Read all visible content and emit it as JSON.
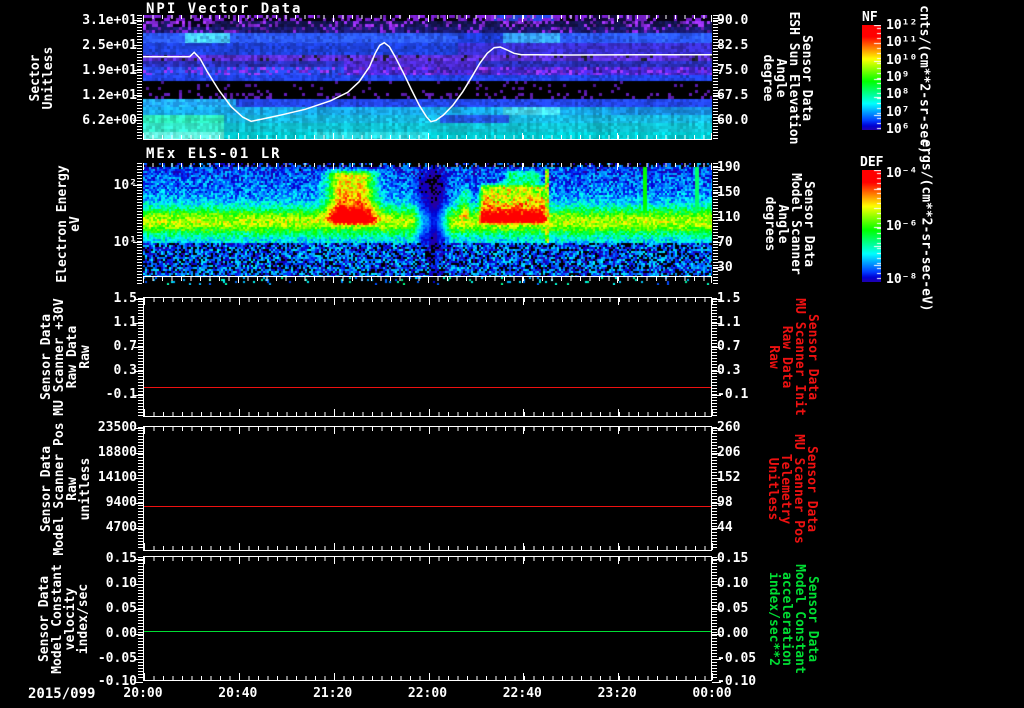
{
  "x_axis": {
    "date": "2015/099",
    "labels": [
      "20:00",
      "20:40",
      "21:20",
      "22:00",
      "22:40",
      "23:20",
      "00:00"
    ]
  },
  "panels": {
    "npi": {
      "title": "NPI Vector Data",
      "left_label_lines": [
        "Sector",
        "Unitless"
      ],
      "left_ticks": [
        "3.1e+01",
        "2.5e+01",
        "1.9e+01",
        "1.2e+01",
        "6.2e+00"
      ],
      "right_ticks": [
        "90.0",
        "82.5",
        "75.0",
        "67.5",
        "60.0"
      ],
      "right_label_lines": [
        "Sensor Data",
        "ESH Sun Elevation",
        "Angle",
        "degree"
      ]
    },
    "els": {
      "title": "MEx ELS-01 LR",
      "left_label_lines": [
        "Electron Energy",
        "eV"
      ],
      "left_ticks": [
        "10²",
        "10¹"
      ],
      "right_ticks": [
        "190",
        "150",
        "110",
        "70",
        "30"
      ],
      "right_label_lines": [
        "Sensor Data",
        "Model Scanner",
        "Angle",
        "degrees"
      ]
    },
    "mu_scanner": {
      "left_label_lines": [
        "Sensor Data",
        "MU Scanner +30V",
        "Raw Data",
        "Raw"
      ],
      "left_ticks": [
        "1.5",
        "1.1",
        "0.7",
        "0.3",
        "-0.1"
      ],
      "right_ticks": [
        "1.5",
        "1.1",
        "0.7",
        "0.3",
        "-0.1"
      ],
      "right_label_lines": [
        "Sensor Data",
        "MU Scanner Init",
        "Raw Data",
        "Raw"
      ],
      "right_label_color": "#ee1111"
    },
    "scanner_pos": {
      "left_label_lines": [
        "Sensor Data",
        "Model Scanner Pos",
        "Raw",
        "unitless"
      ],
      "left_ticks": [
        "23500",
        "18800",
        "14100",
        "9400",
        "4700"
      ],
      "right_ticks": [
        "260",
        "206",
        "152",
        "98",
        "44"
      ],
      "right_label_lines": [
        "Sensor Data",
        "MU Scanner Pos",
        "Telemetry",
        "Unitless"
      ],
      "right_label_color": "#ee1111"
    },
    "model_constant": {
      "left_label_lines": [
        "Sensor Data",
        "Model Constant",
        "velocity",
        "index/sec"
      ],
      "left_ticks": [
        "0.15",
        "0.10",
        "0.05",
        "0.00",
        "-0.05",
        "-0.10"
      ],
      "right_ticks": [
        "0.15",
        "0.10",
        "0.05",
        "0.00",
        "-0.05",
        "-0.10"
      ],
      "right_label_lines": [
        "Sensor Data",
        "Model Constant",
        "acceleration",
        "index/sec**2"
      ],
      "right_label_color": "#00dd33"
    }
  },
  "colorbars": {
    "nf": {
      "title": "NF",
      "ticks": [
        "10¹²",
        "10¹¹",
        "10¹⁰",
        "10⁹",
        "10⁸",
        "10⁷",
        "10⁶"
      ],
      "units": "cnts/(cm**2-sr-sec)"
    },
    "def": {
      "title": "DEF",
      "ticks": [
        "10⁻⁴",
        "10⁻⁶",
        "10⁻⁸"
      ],
      "units": "ergs/(cm**2-sr-sec-eV)"
    }
  },
  "chart_data": [
    {
      "id": "npi_vector_data",
      "type": "heatmap",
      "title": "NPI Vector Data",
      "x_range": [
        "2015/099 20:00",
        "2015/100 00:00"
      ],
      "y_left": {
        "label": "Sector Unitless",
        "ticks": [
          31,
          25,
          19,
          12,
          6.2
        ]
      },
      "y_right": {
        "label": "Sensor Data ESH Sun Elevation Angle degree",
        "ticks": [
          90.0,
          82.5,
          75.0,
          67.5,
          60.0
        ]
      },
      "colorbar": {
        "name": "NF",
        "units": "cnts/(cm**2-sr-sec)",
        "scale": "log",
        "range": [
          1000000.0,
          1000000000000.0
        ]
      },
      "overlay_line": {
        "name": "ESH Sun Elevation Angle",
        "units": "degree",
        "axis": [
          90,
          60
        ],
        "points": [
          [
            0.0,
            79
          ],
          [
            0.082,
            79
          ],
          [
            0.09,
            80.3
          ],
          [
            0.1,
            78.5
          ],
          [
            0.113,
            74.5
          ],
          [
            0.133,
            69
          ],
          [
            0.155,
            64
          ],
          [
            0.175,
            60.9
          ],
          [
            0.19,
            59.6
          ],
          [
            0.21,
            60.3
          ],
          [
            0.245,
            61.6
          ],
          [
            0.285,
            63.2
          ],
          [
            0.33,
            65.8
          ],
          [
            0.36,
            68.3
          ],
          [
            0.38,
            71.5
          ],
          [
            0.398,
            76
          ],
          [
            0.408,
            80
          ],
          [
            0.416,
            82.4
          ],
          [
            0.424,
            83.2
          ],
          [
            0.433,
            82
          ],
          [
            0.443,
            79
          ],
          [
            0.458,
            74
          ],
          [
            0.472,
            69
          ],
          [
            0.486,
            64.3
          ],
          [
            0.498,
            61
          ],
          [
            0.506,
            59.5
          ],
          [
            0.515,
            59.9
          ],
          [
            0.528,
            61.5
          ],
          [
            0.545,
            64.5
          ],
          [
            0.562,
            68.5
          ],
          [
            0.578,
            73
          ],
          [
            0.592,
            77
          ],
          [
            0.605,
            80
          ],
          [
            0.617,
            81.7
          ],
          [
            0.628,
            81.9
          ],
          [
            0.64,
            81
          ],
          [
            0.652,
            80
          ],
          [
            0.665,
            79.6
          ],
          [
            0.75,
            79.5
          ],
          [
            0.87,
            79.6
          ],
          [
            1.0,
            79.6
          ]
        ]
      },
      "bands": [
        {
          "y0": 0,
          "y1": 6,
          "base": "#05010d",
          "noise": 0.1,
          "spk": [
            "#7a1fd0",
            0.5
          ],
          "segs": [
            [
              0.44,
              0.54,
              "#000000"
            ],
            [
              0.6,
              0.72,
              "#2244dd"
            ],
            [
              0.76,
              0.86,
              "#11083a"
            ]
          ]
        },
        {
          "y0": 6,
          "y1": 12,
          "base": "#141450",
          "noise": 0.3,
          "spk": [
            "#8a2be2",
            0.3
          ],
          "segs": [
            [
              0.05,
              0.12,
              "#05051a"
            ]
          ]
        },
        {
          "y0": 12,
          "y1": 18,
          "base": "#1a1a70",
          "noise": 0.3,
          "spk": [
            "#7722cc",
            0.22
          ],
          "segs": []
        },
        {
          "y0": 18,
          "y1": 28,
          "base": "#2b59ff",
          "noise": 0.22,
          "segs": [
            [
              0.07,
              0.15,
              "#45c8ff"
            ],
            [
              0.55,
              0.63,
              "#1c3bd0"
            ],
            [
              0.63,
              0.73,
              "#35a0ff"
            ]
          ]
        },
        {
          "y0": 28,
          "y1": 40,
          "base": "#1e40d8",
          "noise": 0.2,
          "segs": [
            [
              0.55,
              1.01,
              "#3a2fd0"
            ]
          ]
        },
        {
          "y0": 40,
          "y1": 46,
          "base": "#5a2fd6",
          "noise": 0.3,
          "spk": [
            "#222233",
            0.12
          ],
          "segs": []
        },
        {
          "y0": 46,
          "y1": 52,
          "base": "#2a2fb8",
          "noise": 0.25,
          "segs": [
            [
              0.35,
              0.58,
              "#4a28c8"
            ]
          ]
        },
        {
          "y0": 52,
          "y1": 60,
          "base": "#4326c9",
          "noise": 0.3,
          "spk": [
            "#8a30ff",
            0.25
          ],
          "segs": [
            [
              0.0,
              0.35,
              "#2747e8"
            ]
          ]
        },
        {
          "y0": 60,
          "y1": 66,
          "base": "#2244ee",
          "noise": 0.2,
          "segs": []
        },
        {
          "y0": 66,
          "y1": 78,
          "base": "#000000",
          "noise": 0,
          "spk": [
            "#51189e",
            0.08
          ],
          "segs": []
        },
        {
          "y0": 78,
          "y1": 84,
          "base": "#000000",
          "noise": 0,
          "spk": [
            "#5f1db0",
            0.2
          ],
          "segs": []
        },
        {
          "y0": 84,
          "y1": 92,
          "base": "#2346ec",
          "noise": 0.2,
          "segs": [
            [
              0.0,
              0.16,
              "#22aaff"
            ]
          ]
        },
        {
          "y0": 92,
          "y1": 100,
          "base": "#18a8e8",
          "noise": 0.15,
          "segs": [
            [
              0.63,
              0.73,
              "#45d8f0"
            ],
            [
              0.82,
              1.01,
              "#1788d8"
            ]
          ]
        },
        {
          "y0": 100,
          "y1": 108,
          "base": "#17b8e0",
          "noise": 0.15,
          "segs": [
            [
              0.0,
              0.14,
              "#2ee8b8"
            ],
            [
              0.52,
              0.64,
              "#2255dd"
            ]
          ]
        },
        {
          "y0": 108,
          "y1": 117,
          "base": "#10c0d0",
          "noise": 0.12,
          "segs": [
            [
              0.0,
              0.14,
              "#35e8c8"
            ]
          ]
        },
        {
          "y0": 117,
          "y1": 125,
          "base": "#00cdd4",
          "noise": 0.12,
          "segs": [
            [
              0.0,
              0.14,
              "#66f2e0"
            ],
            [
              0.3,
              0.5,
              "#2ad8e0"
            ]
          ]
        }
      ]
    },
    {
      "id": "mex_els_01_lr",
      "type": "heatmap",
      "title": "MEx ELS-01 LR",
      "y_left": {
        "label": "Electron Energy eV",
        "scale": "log",
        "ticks": [
          100,
          10
        ],
        "range_logE": [
          2.39,
          0.25
        ]
      },
      "y_right": {
        "label": "Sensor Data Model Scanner Angle degrees",
        "ticks": [
          190,
          150,
          110,
          70,
          30
        ]
      },
      "colorbar": {
        "name": "DEF",
        "units": "ergs/(cm**2-sr-sec-eV)",
        "scale": "log",
        "range": [
          1e-08,
          0.0001
        ]
      },
      "features": {
        "core_band": {
          "logE_center": 1.38,
          "sigma": 0.17,
          "peak": 0.64
        },
        "hot_blobs": [
          {
            "t0": 0.323,
            "t1": 0.405,
            "logE": [
              1.28,
              2.33
            ],
            "lobes": [
              0.345,
              0.383
            ]
          },
          {
            "t0": 0.585,
            "t1": 0.712,
            "logE": [
              1.3,
              2.08
            ]
          }
        ],
        "dropout_gap": {
          "t0": 0.468,
          "t1": 0.545
        },
        "bright_vlines": [
          0.709,
          0.88,
          0.973
        ]
      }
    },
    {
      "id": "mu_scanner_raw",
      "type": "line",
      "ylim": [
        -0.5,
        1.5
      ],
      "yticks": [
        1.5,
        1.1,
        0.7,
        0.3,
        -0.1
      ],
      "series": [
        {
          "name": "Sensor Data MU Scanner +30V Raw Data Raw",
          "color": "#ee1111",
          "shape": "constant",
          "value": 0.0
        }
      ]
    },
    {
      "id": "model_scanner_pos",
      "type": "line",
      "ylim": [
        0,
        23550
      ],
      "yticks": [
        23500,
        18800,
        14100,
        9400,
        4700
      ],
      "yticks_right": [
        260,
        206,
        152,
        98,
        44
      ],
      "series": [
        {
          "name": "Sensor Data Model Scanner Pos Raw unitless",
          "color": "#ee1111",
          "shape": "constant",
          "value": 8460,
          "value_right_scale": 87
        }
      ]
    },
    {
      "id": "model_constant",
      "type": "line",
      "ylim": [
        -0.102,
        0.152
      ],
      "yticks": [
        0.15,
        0.1,
        0.05,
        0.0,
        -0.05,
        -0.1
      ],
      "series": [
        {
          "name": "Sensor Data Model Constant velocity index/sec",
          "color": "#00dd33",
          "shape": "constant",
          "value": 0.0
        }
      ]
    }
  ]
}
